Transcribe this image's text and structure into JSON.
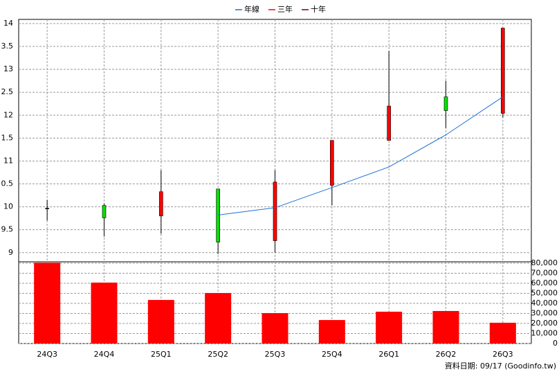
{
  "chart_data": [
    {
      "type": "candlestick",
      "series": [
        {
          "name": "年線",
          "color": "#1a6fd6",
          "values": [
            null,
            null,
            null,
            9.82,
            9.98,
            10.42,
            10.87,
            11.57,
            12.4
          ]
        },
        {
          "name": "三年",
          "color": "#ff0000",
          "values": [
            null,
            null,
            null,
            null,
            null,
            null,
            null,
            null,
            null
          ]
        },
        {
          "name": "十年",
          "color": "#800000",
          "values": [
            null,
            null,
            null,
            null,
            null,
            null,
            null,
            null,
            null
          ]
        }
      ],
      "open": [
        9.97,
        10.03,
        9.8,
        10.39,
        9.26,
        10.47,
        11.45,
        12.4,
        12.04
      ],
      "high": [
        10.15,
        10.07,
        10.8,
        10.39,
        10.8,
        11.45,
        13.4,
        12.75,
        13.9
      ],
      "low": [
        9.7,
        9.35,
        9.41,
        8.97,
        9.0,
        10.03,
        11.45,
        11.72,
        11.95
      ],
      "close": [
        9.97,
        9.76,
        10.33,
        9.23,
        10.54,
        11.45,
        12.2,
        12.1,
        13.9
      ],
      "up_color": "#ff0000",
      "down_color": "#00e000",
      "flat_color": "#000000",
      "ylim": [
        8.8,
        14.09
      ],
      "yticks": [
        9,
        {
          "value": 9.5,
          "label": "9.5"
        },
        10,
        {
          "value": 10.5,
          "label": "0.5"
        },
        11,
        {
          "value": 11.5,
          "label": "1.5"
        },
        12,
        {
          "value": 12.5,
          "label": "2.5"
        },
        13,
        {
          "value": 13.5,
          "label": "3.5"
        },
        14
      ],
      "grid": true
    },
    {
      "type": "bar",
      "categories": [
        "24Q3",
        "24Q4",
        "25Q1",
        "25Q2",
        "25Q3",
        "25Q4",
        "26Q1",
        "26Q2",
        "26Q3"
      ],
      "values": [
        80500,
        60700,
        43400,
        50300,
        30300,
        23400,
        31700,
        32400,
        20700
      ],
      "color": "#ff0000",
      "ylim": [
        0,
        81400
      ],
      "yticks": [
        0,
        {
          "value": 10000,
          "label": "10,000"
        },
        {
          "value": 20000,
          "label": "20,000"
        },
        {
          "value": 30000,
          "label": "30,000"
        },
        {
          "value": 40000,
          "label": "40,000"
        },
        {
          "value": 50000,
          "label": "50,000"
        },
        {
          "value": 60000,
          "label": "60,000"
        },
        {
          "value": 70000,
          "label": "70,000"
        },
        {
          "value": 80000,
          "label": "80,000"
        }
      ],
      "grid": true
    }
  ],
  "footer": "資料日期: 09/17  (Goodinfo.tw)"
}
